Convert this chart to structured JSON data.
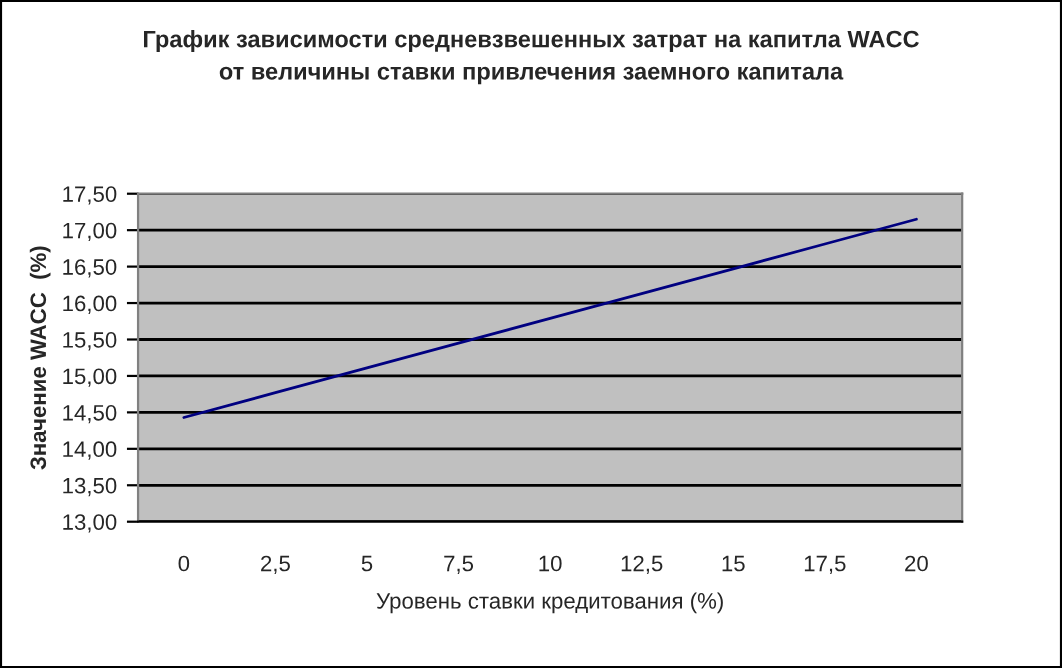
{
  "chart_data": {
    "type": "line",
    "title": "График зависимости средневзвешенных затрат на капитла WACC\nот величины ставки привлечения заемного капитала",
    "xlabel": "Уровень ставки кредитования (%)",
    "ylabel": "Значение WACC  (%)",
    "categories": [
      "0",
      "2,5",
      "5",
      "7,5",
      "10",
      "12,5",
      "15",
      "17,5",
      "20"
    ],
    "series": [
      {
        "color": "#000080",
        "values": [
          14.43,
          14.77,
          15.11,
          15.45,
          15.79,
          16.13,
          16.47,
          16.81,
          17.15
        ]
      }
    ],
    "ylim": [
      13,
      17.5
    ],
    "yticks": [
      {
        "value": 13,
        "label": "13,00"
      },
      {
        "value": 13.5,
        "label": "13,50"
      },
      {
        "value": 14,
        "label": "14,00"
      },
      {
        "value": 14.5,
        "label": "14,50"
      },
      {
        "value": 15,
        "label": "15,00"
      },
      {
        "value": 15.5,
        "label": "15,50"
      },
      {
        "value": 16,
        "label": "16,00"
      },
      {
        "value": 16.5,
        "label": "16,50"
      },
      {
        "value": 17,
        "label": "17,00"
      },
      {
        "value": 17.5,
        "label": "17,50"
      }
    ],
    "grid": "y",
    "legend": false,
    "marker": "none",
    "line_style": "solid"
  }
}
